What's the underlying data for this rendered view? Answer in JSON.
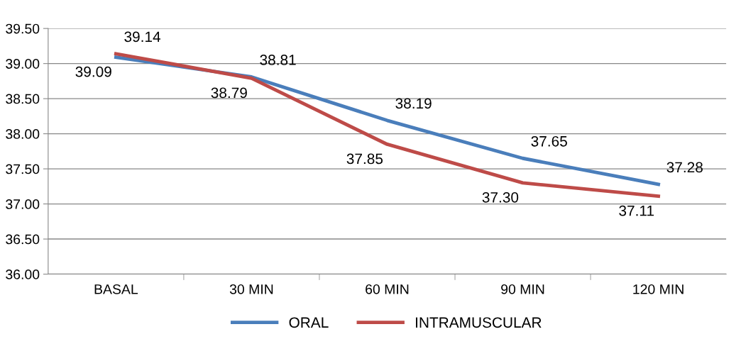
{
  "chart_data": {
    "type": "line",
    "categories": [
      "BASAL",
      "30 MIN",
      "60 MIN",
      "90 MIN",
      "120 MIN"
    ],
    "series": [
      {
        "name": "ORAL",
        "color": "#4a7ebb",
        "values": [
          39.09,
          38.81,
          38.19,
          37.65,
          37.28
        ],
        "value_labels": [
          "39.09",
          "38.81",
          "38.19",
          "37.65",
          "37.28"
        ]
      },
      {
        "name": "INTRAMUSCULAR",
        "color": "#be4b48",
        "values": [
          39.14,
          38.79,
          37.85,
          37.3,
          37.11
        ],
        "value_labels": [
          "39.14",
          "38.79",
          "37.85",
          "37.30",
          "37.11"
        ]
      }
    ],
    "ylim": [
      36.0,
      39.5
    ],
    "yticks": [
      {
        "value": 36.0,
        "label": "36.00"
      },
      {
        "value": 36.5,
        "label": "36.50"
      },
      {
        "value": 37.0,
        "label": "37.00"
      },
      {
        "value": 37.5,
        "label": "37.50"
      },
      {
        "value": 38.0,
        "label": "38.00"
      },
      {
        "value": 38.5,
        "label": "38.50"
      },
      {
        "value": 39.0,
        "label": "39.00"
      },
      {
        "value": 39.5,
        "label": "39.50"
      }
    ],
    "grid": "y",
    "legend": "bottom",
    "marker": "none",
    "line_style": "solid"
  }
}
